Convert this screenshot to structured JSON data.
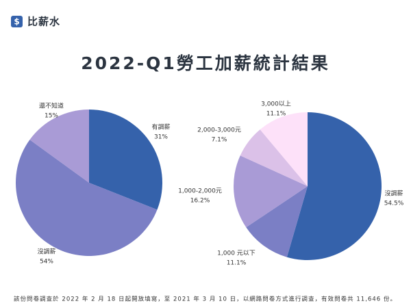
{
  "header": {
    "icon": "$",
    "brand": "比薪水"
  },
  "title": "2022-Q1勞工加薪統計結果",
  "chart_data": [
    {
      "type": "pie",
      "categories": [
        "有調薪",
        "沒調薪",
        "還不知道"
      ],
      "values": [
        31,
        54,
        15
      ],
      "value_labels": [
        "31%",
        "54%",
        "15%"
      ],
      "colors": [
        "#3562ab",
        "#7b7fc5",
        "#a99bd6"
      ]
    },
    {
      "type": "pie",
      "categories": [
        "沒調薪",
        "1,000 元以下",
        "1,000-2,000元",
        "2,000-3,000元",
        "3,000以上"
      ],
      "values": [
        54.5,
        11.1,
        16.2,
        7.1,
        11.1
      ],
      "value_labels": [
        "54.5%",
        "11.1%",
        "16.2%",
        "7.1%",
        "11.1%"
      ],
      "colors": [
        "#3562ab",
        "#7b7fc5",
        "#a99bd6",
        "#dbc1e8",
        "#fde1f9"
      ]
    }
  ],
  "footnote": "該份問卷調查於 2022 年 2 月 18 日起開放填寫，至 2021 年 3 月 10 日，以網路問卷方式進行調查，有效問卷共 11,646 份。"
}
